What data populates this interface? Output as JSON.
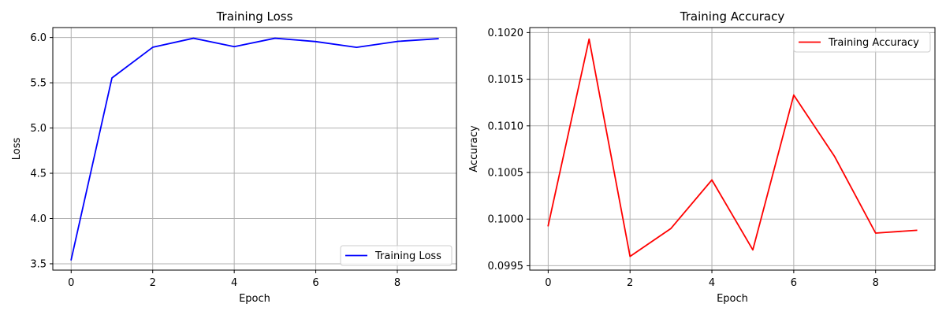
{
  "chart_data": [
    {
      "type": "line",
      "title": "Training Loss",
      "xlabel": "Epoch",
      "ylabel": "Loss",
      "xlim": [
        -0.45,
        9.45
      ],
      "ylim": [
        3.43,
        6.11
      ],
      "xticks": [
        0,
        2,
        4,
        6,
        8
      ],
      "xtick_labels": [
        "0",
        "2",
        "4",
        "6",
        "8"
      ],
      "yticks": [
        3.5,
        4.0,
        4.5,
        5.0,
        5.5,
        6.0
      ],
      "ytick_labels": [
        "3.5",
        "4.0",
        "4.5",
        "5.0",
        "5.5",
        "6.0"
      ],
      "grid": true,
      "legend_position": "lower-right",
      "series": [
        {
          "name": "Training Loss",
          "color": "#0000ff",
          "x": [
            0,
            1,
            2,
            3,
            4,
            5,
            6,
            7,
            8,
            9
          ],
          "y": [
            3.545,
            5.553,
            5.892,
            5.992,
            5.899,
            5.992,
            5.955,
            5.891,
            5.957,
            5.987
          ]
        }
      ]
    },
    {
      "type": "line",
      "title": "Training Accuracy",
      "xlabel": "Epoch",
      "ylabel": "Accuracy",
      "xlim": [
        -0.45,
        9.45
      ],
      "ylim": [
        0.099453,
        0.102054
      ],
      "xticks": [
        0,
        2,
        4,
        6,
        8
      ],
      "xtick_labels": [
        "0",
        "2",
        "4",
        "6",
        "8"
      ],
      "yticks": [
        0.0995,
        0.1,
        0.1005,
        0.101,
        0.1015,
        0.102
      ],
      "ytick_labels": [
        "0.0995",
        "0.1000",
        "0.1005",
        "0.1010",
        "0.1015",
        "0.1020"
      ],
      "grid": true,
      "legend_position": "upper-right",
      "series": [
        {
          "name": "Training Accuracy",
          "color": "#ff0000",
          "x": [
            0,
            1,
            2,
            3,
            4,
            5,
            6,
            7,
            8,
            9
          ],
          "y": [
            0.09993,
            0.10193,
            0.0996,
            0.0999,
            0.10042,
            0.09967,
            0.10133,
            0.10067,
            0.09985,
            0.09988
          ]
        }
      ]
    }
  ]
}
